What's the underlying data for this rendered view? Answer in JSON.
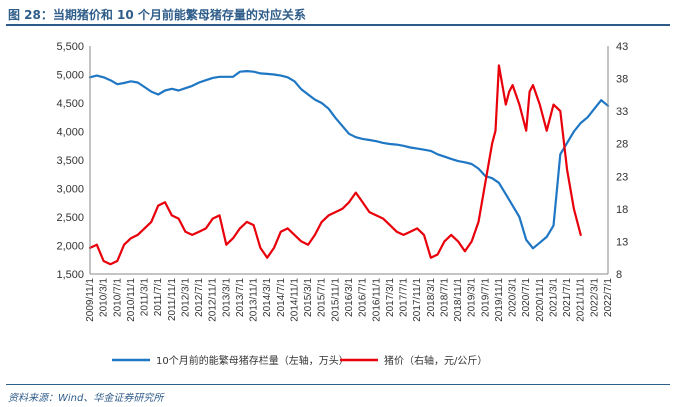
{
  "header": {
    "title": "图 28：当期猪价和 10 个月前能繁母猪存量的对应关系"
  },
  "footer": {
    "source": "资料来源：Wind、华金证券研究所"
  },
  "chart_data": {
    "type": "line",
    "left_axis": {
      "ylim": [
        1500,
        5500
      ],
      "ticks": [
        "1,500",
        "2,000",
        "2,500",
        "3,000",
        "3,500",
        "4,000",
        "4,500",
        "5,000",
        "5,500"
      ],
      "tick_values": [
        1500,
        2000,
        2500,
        3000,
        3500,
        4000,
        4500,
        5000,
        5500
      ]
    },
    "right_axis": {
      "ylim": [
        8,
        43
      ],
      "ticks": [
        "8",
        "13",
        "18",
        "23",
        "28",
        "33",
        "38",
        "43"
      ],
      "tick_values": [
        8,
        13,
        18,
        23,
        28,
        33,
        38,
        43
      ]
    },
    "x_range": [
      "2009/11/1",
      "2022/7/1"
    ],
    "x_tick_labels": [
      "2009/11/1",
      "2010/3/1",
      "2010/7/1",
      "2010/11/1",
      "2011/3/1",
      "2011/7/1",
      "2011/11/1",
      "2012/3/1",
      "2012/7/1",
      "2012/11/1",
      "2013/3/1",
      "2013/7/1",
      "2013/11/1",
      "2014/3/1",
      "2014/7/1",
      "2014/11/1",
      "2015/3/1",
      "2015/7/1",
      "2015/11/1",
      "2016/3/1",
      "2016/7/1",
      "2016/11/1",
      "2017/3/1",
      "2017/7/1",
      "2017/11/1",
      "2018/3/1",
      "2018/7/1",
      "2018/11/1",
      "2019/3/1",
      "2019/7/1",
      "2019/11/1",
      "2020/3/1",
      "2020/7/1",
      "2020/11/1",
      "2021/3/1",
      "2021/7/1",
      "2021/11/1",
      "2022/3/1",
      "2022/7/1"
    ],
    "grid": false,
    "legend_placement": "bottom",
    "series": [
      {
        "name": "10个月前的能繁母猪存栏量（左轴，万头）",
        "axis": "left",
        "color": "#1f77c4",
        "x": [
          "2009/11/1",
          "2010/1/1",
          "2010/3/1",
          "2010/5/1",
          "2010/7/1",
          "2010/9/1",
          "2010/11/1",
          "2011/1/1",
          "2011/3/1",
          "2011/5/1",
          "2011/7/1",
          "2011/9/1",
          "2011/11/1",
          "2012/1/1",
          "2012/3/1",
          "2012/5/1",
          "2012/7/1",
          "2012/9/1",
          "2012/11/1",
          "2013/1/1",
          "2013/3/1",
          "2013/5/1",
          "2013/7/1",
          "2013/9/1",
          "2013/11/1",
          "2014/1/1",
          "2014/3/1",
          "2014/5/1",
          "2014/7/1",
          "2014/9/1",
          "2014/11/1",
          "2015/1/1",
          "2015/3/1",
          "2015/5/1",
          "2015/7/1",
          "2015/9/1",
          "2015/11/1",
          "2016/1/1",
          "2016/3/1",
          "2016/5/1",
          "2016/7/1",
          "2016/9/1",
          "2016/11/1",
          "2017/1/1",
          "2017/3/1",
          "2017/5/1",
          "2017/7/1",
          "2017/9/1",
          "2017/11/1",
          "2018/1/1",
          "2018/3/1",
          "2018/5/1",
          "2018/7/1",
          "2018/9/1",
          "2018/11/1",
          "2019/1/1",
          "2019/3/1",
          "2019/5/1",
          "2019/7/1",
          "2019/9/1",
          "2019/11/1",
          "2020/1/1",
          "2020/3/1",
          "2020/5/1",
          "2020/7/1",
          "2020/9/1",
          "2020/11/1",
          "2021/1/1",
          "2021/3/1",
          "2021/5/1",
          "2021/7/1",
          "2021/9/1",
          "2021/11/1",
          "2022/1/1",
          "2022/3/1",
          "2022/5/1",
          "2022/7/1"
        ],
        "values": [
          4950,
          4980,
          4950,
          4900,
          4830,
          4850,
          4880,
          4860,
          4780,
          4700,
          4650,
          4720,
          4750,
          4720,
          4760,
          4800,
          4860,
          4900,
          4940,
          4960,
          4960,
          4960,
          5050,
          5060,
          5050,
          5020,
          5010,
          5000,
          4980,
          4950,
          4880,
          4740,
          4650,
          4560,
          4500,
          4400,
          4240,
          4100,
          3960,
          3900,
          3870,
          3850,
          3830,
          3800,
          3780,
          3770,
          3750,
          3720,
          3700,
          3680,
          3660,
          3600,
          3560,
          3520,
          3480,
          3460,
          3430,
          3350,
          3220,
          3180,
          3100,
          2900,
          2700,
          2500,
          2100,
          1950,
          2050,
          2150,
          2350,
          3600,
          3800,
          4000,
          4150,
          4250,
          4400,
          4550,
          4450
        ]
      },
      {
        "name": "猪价（右轴，元/公斤）",
        "axis": "right",
        "color": "#e8000b",
        "x": [
          "2009/11/1",
          "2010/1/1",
          "2010/3/1",
          "2010/5/1",
          "2010/7/1",
          "2010/9/1",
          "2010/11/1",
          "2011/1/1",
          "2011/3/1",
          "2011/5/1",
          "2011/7/1",
          "2011/9/1",
          "2011/11/1",
          "2012/1/1",
          "2012/3/1",
          "2012/5/1",
          "2012/7/1",
          "2012/9/1",
          "2012/11/1",
          "2013/1/1",
          "2013/3/1",
          "2013/5/1",
          "2013/7/1",
          "2013/9/1",
          "2013/11/1",
          "2014/1/1",
          "2014/3/1",
          "2014/5/1",
          "2014/7/1",
          "2014/9/1",
          "2014/11/1",
          "2015/1/1",
          "2015/3/1",
          "2015/5/1",
          "2015/7/1",
          "2015/9/1",
          "2015/11/1",
          "2016/1/1",
          "2016/3/1",
          "2016/5/1",
          "2016/7/1",
          "2016/9/1",
          "2016/11/1",
          "2017/1/1",
          "2017/3/1",
          "2017/5/1",
          "2017/7/1",
          "2017/9/1",
          "2017/11/1",
          "2018/1/1",
          "2018/3/1",
          "2018/5/1",
          "2018/7/1",
          "2018/9/1",
          "2018/11/1",
          "2019/1/1",
          "2019/3/1",
          "2019/5/1",
          "2019/7/1",
          "2019/9/1",
          "2019/10/1",
          "2019/11/1",
          "2020/1/1",
          "2020/2/1",
          "2020/3/1",
          "2020/5/1",
          "2020/7/1",
          "2020/8/1",
          "2020/9/1",
          "2020/11/1",
          "2021/1/1",
          "2021/3/1",
          "2021/5/1",
          "2021/7/1",
          "2021/9/1",
          "2021/11/1"
        ],
        "values": [
          12,
          12.5,
          10,
          9.5,
          10,
          12.5,
          13.5,
          14,
          15,
          16,
          18.5,
          19,
          17,
          16.5,
          14.5,
          14,
          14.5,
          15,
          16.5,
          17,
          12.5,
          13.5,
          15,
          16,
          15.5,
          12,
          10.5,
          12,
          14.5,
          15,
          14,
          13,
          12.5,
          14,
          16,
          17,
          17.5,
          18,
          19,
          20.5,
          19,
          17.5,
          17,
          16.5,
          15.5,
          14.5,
          14,
          14.5,
          15,
          14,
          10.5,
          11,
          13,
          14,
          13,
          11.5,
          13,
          16,
          22,
          28,
          30,
          40,
          34,
          36,
          37,
          34,
          30,
          36,
          37,
          34,
          30,
          34,
          33,
          24,
          18,
          14
        ]
      }
    ]
  }
}
